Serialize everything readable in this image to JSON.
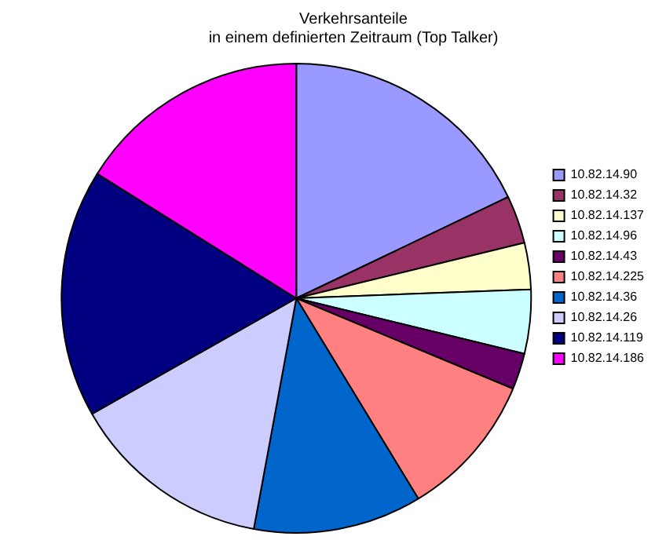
{
  "chart_data": {
    "type": "pie",
    "title": "Verkehrsanteile",
    "subtitle": "in einem definierten Zeitraum (Top Talker)",
    "categories": [
      "10.82.14.90",
      "10.82.14.32",
      "10.82.14.137",
      "10.82.14.96",
      "10.82.14.43",
      "10.82.14.225",
      "10.82.14.36",
      "10.82.14.26",
      "10.82.14.119",
      "10.82.14.186"
    ],
    "values": [
      17.9,
      3.3,
      3.2,
      4.4,
      2.5,
      10,
      11.6,
      13.9,
      17.1,
      16.1
    ],
    "colors": [
      "#9999ff",
      "#993366",
      "#ffffcc",
      "#ccffff",
      "#660066",
      "#ff8080",
      "#0066cc",
      "#ccccff",
      "#000080",
      "#ff00ff"
    ],
    "legend": "right"
  }
}
